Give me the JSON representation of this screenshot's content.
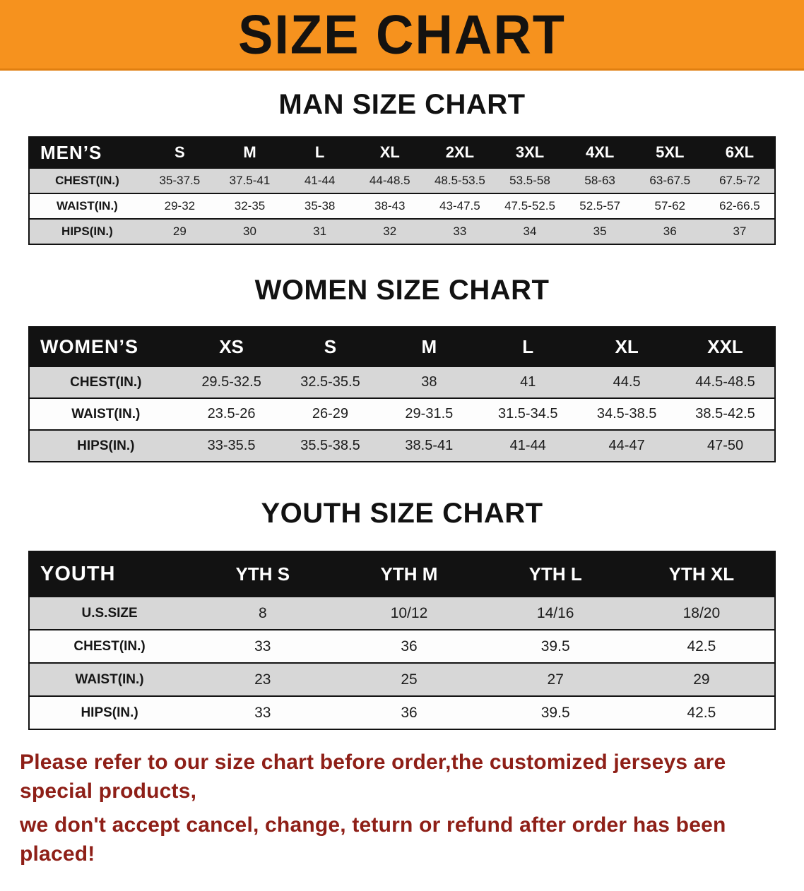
{
  "banner": {
    "title": "SIZE CHART"
  },
  "colors": {
    "banner_orange": "#f6921e",
    "header_black": "#121212",
    "row_shade_gray": "#d7d7d7",
    "footer_red": "#8e1f17"
  },
  "chart_data": [
    {
      "type": "table",
      "title": "MAN SIZE CHART",
      "corner": "MEN’S",
      "columns": [
        "S",
        "M",
        "L",
        "XL",
        "2XL",
        "3XL",
        "4XL",
        "5XL",
        "6XL"
      ],
      "rows": [
        {
          "label": "CHEST(IN.)",
          "values": [
            "35-37.5",
            "37.5-41",
            "41-44",
            "44-48.5",
            "48.5-53.5",
            "53.5-58",
            "58-63",
            "63-67.5",
            "67.5-72"
          ]
        },
        {
          "label": "WAIST(IN.)",
          "values": [
            "29-32",
            "32-35",
            "35-38",
            "38-43",
            "43-47.5",
            "47.5-52.5",
            "52.5-57",
            "57-62",
            "62-66.5"
          ]
        },
        {
          "label": "HIPS(IN.)",
          "values": [
            "29",
            "30",
            "31",
            "32",
            "33",
            "34",
            "35",
            "36",
            "37"
          ]
        }
      ]
    },
    {
      "type": "table",
      "title": "WOMEN SIZE CHART",
      "corner": "WOMEN’S",
      "columns": [
        "XS",
        "S",
        "M",
        "L",
        "XL",
        "XXL"
      ],
      "rows": [
        {
          "label": "CHEST(IN.)",
          "values": [
            "29.5-32.5",
            "32.5-35.5",
            "38",
            "41",
            "44.5",
            "44.5-48.5"
          ]
        },
        {
          "label": "WAIST(IN.)",
          "values": [
            "23.5-26",
            "26-29",
            "29-31.5",
            "31.5-34.5",
            "34.5-38.5",
            "38.5-42.5"
          ]
        },
        {
          "label": "HIPS(IN.)",
          "values": [
            "33-35.5",
            "35.5-38.5",
            "38.5-41",
            "41-44",
            "44-47",
            "47-50"
          ]
        }
      ]
    },
    {
      "type": "table",
      "title": "YOUTH SIZE CHART",
      "corner": "YOUTH",
      "columns": [
        "YTH S",
        "YTH M",
        "YTH L",
        "YTH XL"
      ],
      "rows": [
        {
          "label": "U.S.SIZE",
          "values": [
            "8",
            "10/12",
            "14/16",
            "18/20"
          ]
        },
        {
          "label": "CHEST(IN.)",
          "values": [
            "33",
            "36",
            "39.5",
            "42.5"
          ]
        },
        {
          "label": "WAIST(IN.)",
          "values": [
            "23",
            "25",
            "27",
            "29"
          ]
        },
        {
          "label": "HIPS(IN.)",
          "values": [
            "33",
            "36",
            "39.5",
            "42.5"
          ]
        }
      ]
    }
  ],
  "footer": {
    "line1": "Please refer to our size chart before order,the customized jerseys are special products,",
    "line2": "we don't accept cancel, change, teturn or refund after order has been placed!"
  }
}
